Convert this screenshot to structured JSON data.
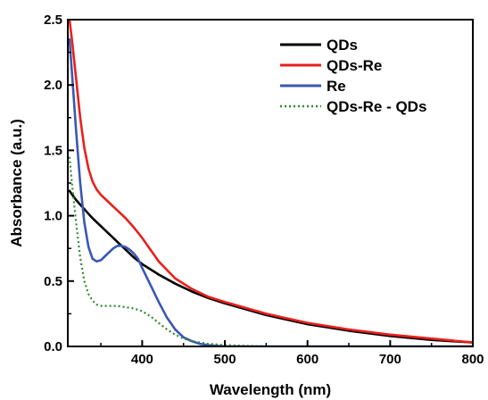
{
  "chart_data": {
    "type": "line",
    "title": "",
    "xlabel": "Wavelength (nm)",
    "ylabel": "Absorbance (a.u.)",
    "xlim": [
      310,
      800
    ],
    "ylim": [
      0,
      2.5
    ],
    "x_ticks": [
      400,
      500,
      600,
      700,
      800
    ],
    "x_tick_labels": [
      "400",
      "500",
      "600",
      "700",
      "800"
    ],
    "y_ticks": [
      0,
      0.5,
      1.0,
      1.5,
      2.0,
      2.5
    ],
    "y_tick_labels": [
      "0.0",
      "0.5",
      "1.0",
      "1.5",
      "2.0",
      "2.5"
    ],
    "grid": false,
    "legend_position": "top-right",
    "series": [
      {
        "name": "QDs",
        "color": "#000000",
        "dash": "solid",
        "x": [
          312,
          320,
          330,
          340,
          350,
          360,
          370,
          380,
          390,
          400,
          420,
          440,
          460,
          480,
          500,
          550,
          600,
          650,
          700,
          750,
          800
        ],
        "y": [
          1.19,
          1.12,
          1.05,
          0.98,
          0.92,
          0.86,
          0.8,
          0.74,
          0.68,
          0.63,
          0.55,
          0.48,
          0.42,
          0.37,
          0.33,
          0.24,
          0.17,
          0.12,
          0.08,
          0.05,
          0.03
        ]
      },
      {
        "name": "QDs-Re",
        "color": "#e8201c",
        "dash": "solid",
        "x": [
          312,
          315,
          320,
          325,
          330,
          335,
          340,
          345,
          350,
          360,
          370,
          380,
          390,
          400,
          410,
          420,
          440,
          460,
          480,
          500,
          550,
          600,
          650,
          700,
          750,
          800
        ],
        "y": [
          2.5,
          2.35,
          2.05,
          1.75,
          1.52,
          1.36,
          1.26,
          1.2,
          1.16,
          1.1,
          1.04,
          0.98,
          0.91,
          0.83,
          0.74,
          0.65,
          0.52,
          0.44,
          0.38,
          0.34,
          0.25,
          0.18,
          0.13,
          0.09,
          0.06,
          0.03
        ]
      },
      {
        "name": "Re",
        "color": "#3a57b3",
        "dash": "solid",
        "x": [
          312,
          315,
          320,
          325,
          330,
          335,
          340,
          345,
          350,
          355,
          360,
          365,
          370,
          375,
          380,
          385,
          390,
          395,
          400,
          410,
          420,
          430,
          440,
          450,
          460,
          470,
          480,
          500,
          550,
          600,
          700,
          800
        ],
        "y": [
          2.35,
          2.1,
          1.65,
          1.25,
          0.95,
          0.76,
          0.67,
          0.65,
          0.66,
          0.69,
          0.72,
          0.75,
          0.77,
          0.77,
          0.76,
          0.74,
          0.71,
          0.67,
          0.6,
          0.47,
          0.34,
          0.22,
          0.13,
          0.07,
          0.04,
          0.02,
          0.01,
          0.0,
          0.0,
          0.0,
          0.0,
          0.0
        ]
      },
      {
        "name": "QDs-Re - QDs",
        "color": "#2e8b2e",
        "dash": "dotted",
        "x": [
          312,
          315,
          320,
          325,
          330,
          335,
          340,
          345,
          350,
          360,
          370,
          380,
          390,
          400,
          410,
          420,
          430,
          440,
          450,
          460,
          470,
          480,
          500,
          550,
          600,
          700,
          800
        ],
        "y": [
          1.45,
          1.25,
          0.95,
          0.68,
          0.5,
          0.4,
          0.35,
          0.32,
          0.31,
          0.31,
          0.31,
          0.3,
          0.29,
          0.27,
          0.23,
          0.18,
          0.13,
          0.09,
          0.06,
          0.04,
          0.03,
          0.02,
          0.01,
          0.0,
          0.0,
          0.0,
          0.0
        ]
      }
    ]
  }
}
